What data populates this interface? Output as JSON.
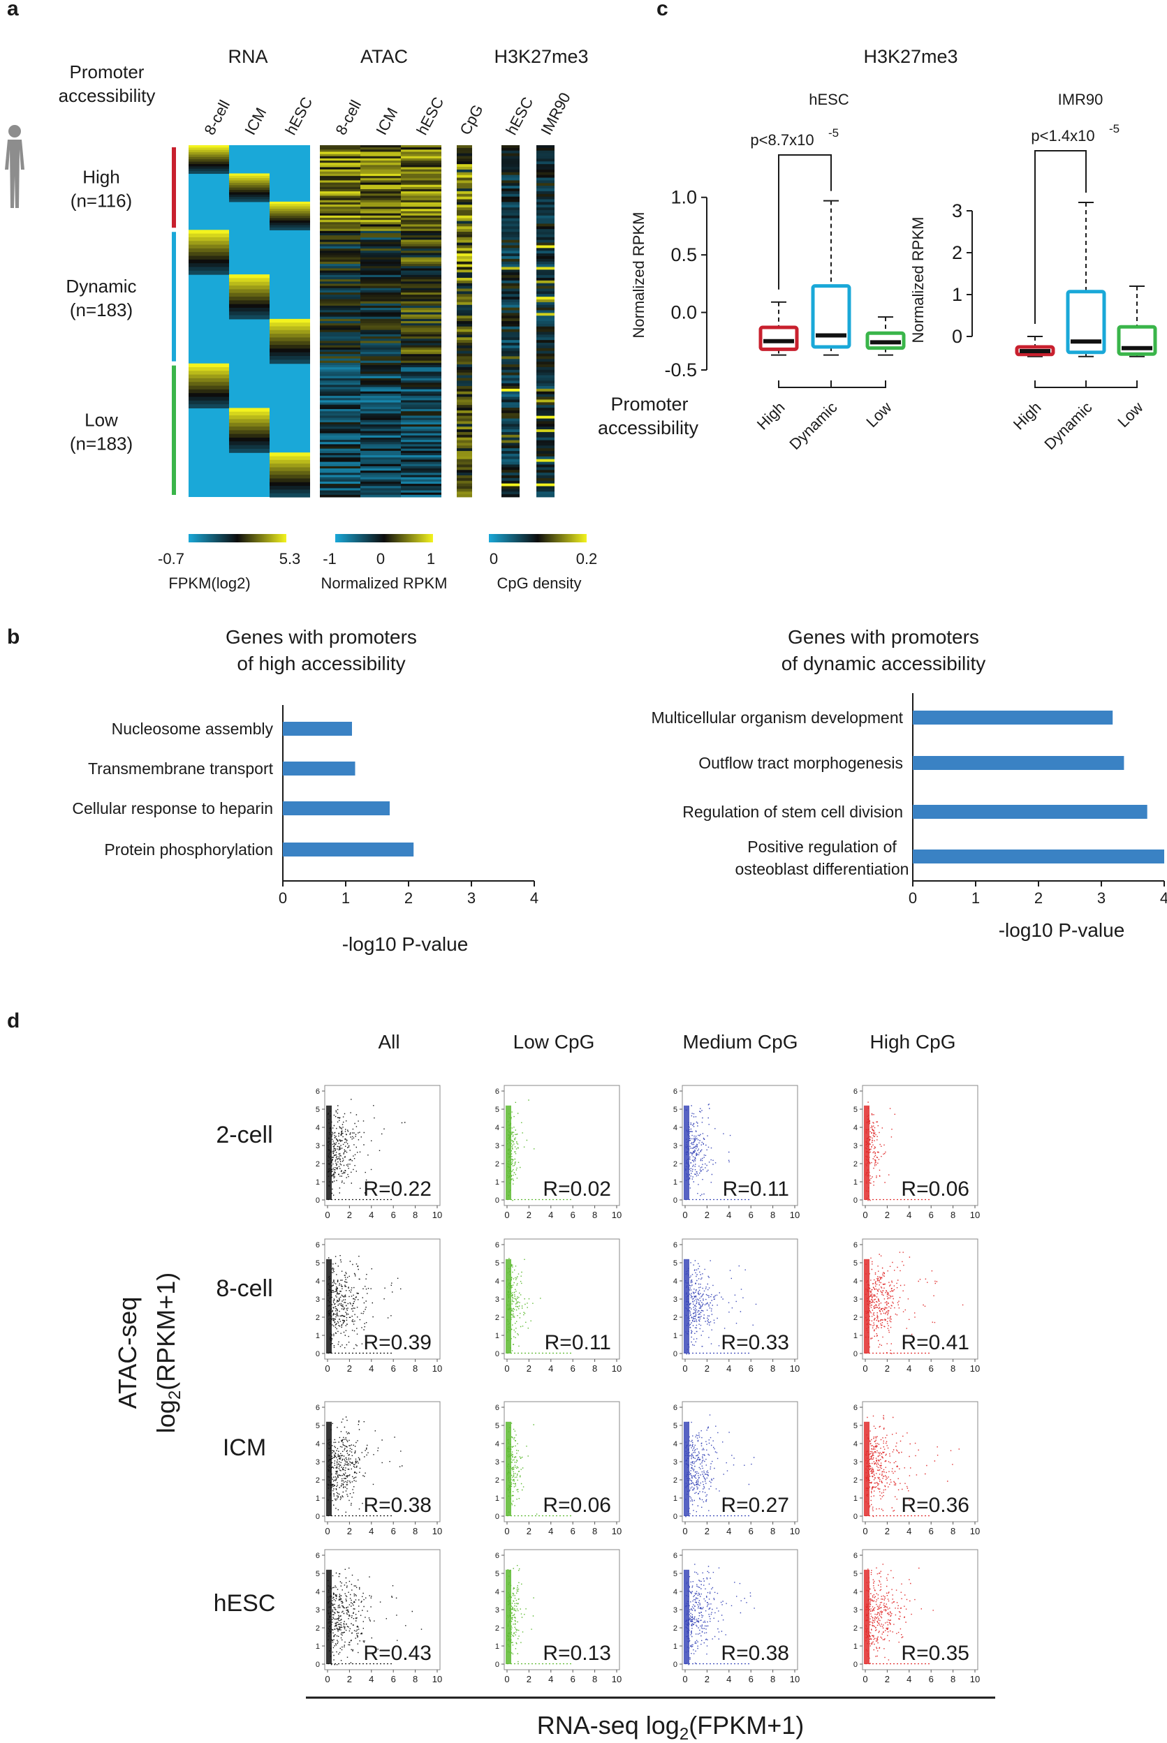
{
  "panels": {
    "a": {
      "letter": "a",
      "section_headers": [
        "RNA",
        "ATAC",
        "H3K27me3"
      ],
      "row_title": [
        "Promoter",
        "accessibility"
      ],
      "columns": [
        "8-cell",
        "ICM",
        "hESC",
        "8-cell",
        "ICM",
        "hESC",
        "CpG",
        "hESC",
        "IMR90"
      ],
      "groups": [
        {
          "label": "High",
          "n": "(n=116)",
          "color": "#c8202e"
        },
        {
          "label": "Dynamic",
          "n": "(n=183)",
          "color": "#1aa8d8"
        },
        {
          "label": "Low",
          "n": "(n=183)",
          "color": "#3ab54a"
        }
      ],
      "colorbars": [
        {
          "ticks": [
            "-0.7",
            "5.3"
          ],
          "label": "FPKM(log2)"
        },
        {
          "ticks": [
            "-1",
            "0",
            "1"
          ],
          "label": "Normalized RPKM"
        },
        {
          "ticks": [
            "0",
            "0.2"
          ],
          "label": "CpG density"
        }
      ],
      "colors": {
        "low": "#1aa8d8",
        "mid": "#0d0d0d",
        "high": "#f3f31e"
      }
    },
    "b": {
      "letter": "b"
    },
    "c": {
      "letter": "c",
      "title": "H3K27me3",
      "row_label": [
        "Promoter",
        "accessibility"
      ]
    },
    "d": {
      "letter": "d"
    }
  },
  "chart_data": [
    {
      "id": "b-left",
      "type": "bar",
      "orientation": "horizontal",
      "title": [
        "Genes with promoters",
        "of high accessibility"
      ],
      "xlabel": "-log10 P-value",
      "xlim": [
        0,
        4
      ],
      "xticks": [
        "0",
        "1",
        "2",
        "3",
        "4"
      ],
      "categories": [
        [
          "Nucleosome assembly"
        ],
        [
          "Transmembrane transport"
        ],
        [
          "Cellular response to heparin"
        ],
        [
          "Protein phosphorylation"
        ]
      ],
      "values": [
        1.1,
        1.15,
        1.7,
        2.08
      ],
      "color": "#3a82c4"
    },
    {
      "id": "b-right",
      "type": "bar",
      "orientation": "horizontal",
      "title": [
        "Genes with promoters",
        "of dynamic accessibility"
      ],
      "xlabel": "-log10 P-value",
      "xlim": [
        0,
        4
      ],
      "xticks": [
        "0",
        "1",
        "2",
        "3",
        "4"
      ],
      "categories": [
        [
          "Multicellular organism development"
        ],
        [
          "Outflow tract morphogenesis"
        ],
        [
          "Regulation of stem cell division"
        ],
        [
          "Positive regulation of",
          "osteoblast differentiation"
        ]
      ],
      "values": [
        3.18,
        3.36,
        3.73,
        4.0
      ],
      "color": "#3a82c4"
    },
    {
      "id": "c-hESC",
      "type": "box",
      "title": "hESC",
      "ylabel": "Normalized RPKM",
      "ylim": [
        -0.5,
        1.15
      ],
      "yticks": [
        "-0.5",
        "0.0",
        "0.5",
        "1.0"
      ],
      "categories": [
        "High",
        "Dynamic",
        "Low"
      ],
      "colors": [
        "#c8202e",
        "#1aa8d8",
        "#3ab54a"
      ],
      "boxes": [
        {
          "whisker_low": -0.37,
          "q1": -0.32,
          "median": -0.25,
          "q3": -0.13,
          "whisker_high": 0.09
        },
        {
          "whisker_low": -0.37,
          "q1": -0.3,
          "median": -0.2,
          "q3": 0.23,
          "whisker_high": 0.97
        },
        {
          "whisker_low": -0.37,
          "q1": -0.31,
          "median": -0.26,
          "q3": -0.18,
          "whisker_high": -0.04
        }
      ],
      "annotation": {
        "text": "p<8.7x10",
        "exponent": "-5",
        "between": [
          0,
          1
        ]
      }
    },
    {
      "id": "c-IMR90",
      "type": "box",
      "title": "IMR90",
      "ylabel": "Normalized RPKM",
      "ylim": [
        -0.8,
        3.5
      ],
      "yticks": [
        "0",
        "1",
        "2",
        "3"
      ],
      "categories": [
        "High",
        "Dynamic",
        "Low"
      ],
      "colors": [
        "#c8202e",
        "#1aa8d8",
        "#3ab54a"
      ],
      "boxes": [
        {
          "whisker_low": -0.48,
          "q1": -0.43,
          "median": -0.35,
          "q3": -0.25,
          "whisker_high": 0.0
        },
        {
          "whisker_low": -0.48,
          "q1": -0.38,
          "median": -0.12,
          "q3": 1.07,
          "whisker_high": 3.2
        },
        {
          "whisker_low": -0.48,
          "q1": -0.42,
          "median": -0.28,
          "q3": 0.23,
          "whisker_high": 1.2
        }
      ],
      "annotation": {
        "text": "p<1.4x10",
        "exponent": "-5",
        "between": [
          0,
          1
        ]
      }
    },
    {
      "id": "d",
      "type": "scatter",
      "xlabel": {
        "base": "RNA-seq log",
        "sub": "2",
        "rest": "(FPKM+1)"
      },
      "ylabel": {
        "line1": "ATAC-seq",
        "base": "log",
        "sub": "2",
        "rest": "(RPKM+1)"
      },
      "xlim": [
        0,
        10
      ],
      "ylim": [
        0,
        6
      ],
      "xticks": [
        "0",
        "2",
        "4",
        "6",
        "8",
        "10"
      ],
      "yticks": [
        "0",
        "1",
        "2",
        "3",
        "4",
        "5",
        "6"
      ],
      "columns": [
        {
          "name": "All",
          "color": "#111111"
        },
        {
          "name": "Low CpG",
          "color": "#5bb82e"
        },
        {
          "name": "Medium CpG",
          "color": "#3a48b8"
        },
        {
          "name": "High CpG",
          "color": "#e02a2a"
        }
      ],
      "rows": [
        "2-cell",
        "8-cell",
        "ICM",
        "hESC"
      ],
      "r_values": [
        [
          "R=0.22",
          "R=0.02",
          "R=0.11",
          "R=0.06"
        ],
        [
          "R=0.39",
          "R=0.11",
          "R=0.33",
          "R=0.41"
        ],
        [
          "R=0.38",
          "R=0.06",
          "R=0.27",
          "R=0.36"
        ],
        [
          "R=0.43",
          "R=0.13",
          "R=0.38",
          "R=0.35"
        ]
      ]
    }
  ]
}
